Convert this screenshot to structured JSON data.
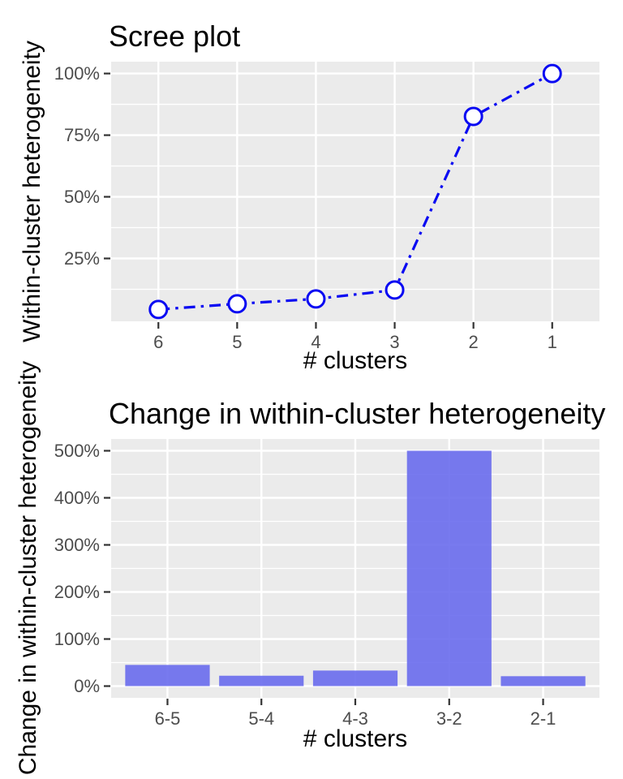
{
  "page": {
    "background": "#FFFFFF"
  },
  "style": {
    "panel_bg": "#EBEBEB",
    "grid_color": "#FFFFFF",
    "tick_label_color": "#4D4D4D",
    "tick_mark_color": "#333333",
    "text_color": "#000000",
    "line_color": "#0909F2",
    "marker_fill": "#FFFFFF",
    "bar_color": "#696BED"
  },
  "chart_data": [
    {
      "type": "line",
      "title": "Scree plot",
      "xlabel": "# clusters",
      "ylabel": "Within-cluster heterogeneity",
      "categories": [
        "6",
        "5",
        "4",
        "3",
        "2",
        "1"
      ],
      "values": [
        4.3,
        6.6,
        8.6,
        12.2,
        82.6,
        100
      ],
      "value_unit": "percent",
      "y_ticks": [
        {
          "value": 25,
          "label": "25%"
        },
        {
          "value": 50,
          "label": "50%"
        },
        {
          "value": 75,
          "label": "75%"
        },
        {
          "value": 100,
          "label": "100%"
        }
      ],
      "minor_ticks": [
        12.5,
        37.5,
        62.5,
        87.5
      ],
      "ylim": [
        -0.5,
        104.8
      ],
      "line_style": "dash-dot",
      "marker": "open-circle",
      "grid": "on",
      "legend": "none"
    },
    {
      "type": "bar",
      "title": "Change in within-cluster heterogeneity",
      "xlabel": "# clusters",
      "ylabel": "Change in within-cluster heterogeneity",
      "categories": [
        "6-5",
        "5-4",
        "4-3",
        "3-2",
        "2-1"
      ],
      "values": [
        45,
        22,
        33,
        500,
        21
      ],
      "value_unit": "percent",
      "y_ticks": [
        {
          "value": 0,
          "label": "0%"
        },
        {
          "value": 100,
          "label": "100%"
        },
        {
          "value": 200,
          "label": "200%"
        },
        {
          "value": 300,
          "label": "300%"
        },
        {
          "value": 400,
          "label": "400%"
        },
        {
          "value": 500,
          "label": "500%"
        }
      ],
      "minor_ticks": [
        50,
        150,
        250,
        350,
        450
      ],
      "ylim": [
        -25,
        525
      ],
      "grid": "on",
      "legend": "none"
    }
  ]
}
